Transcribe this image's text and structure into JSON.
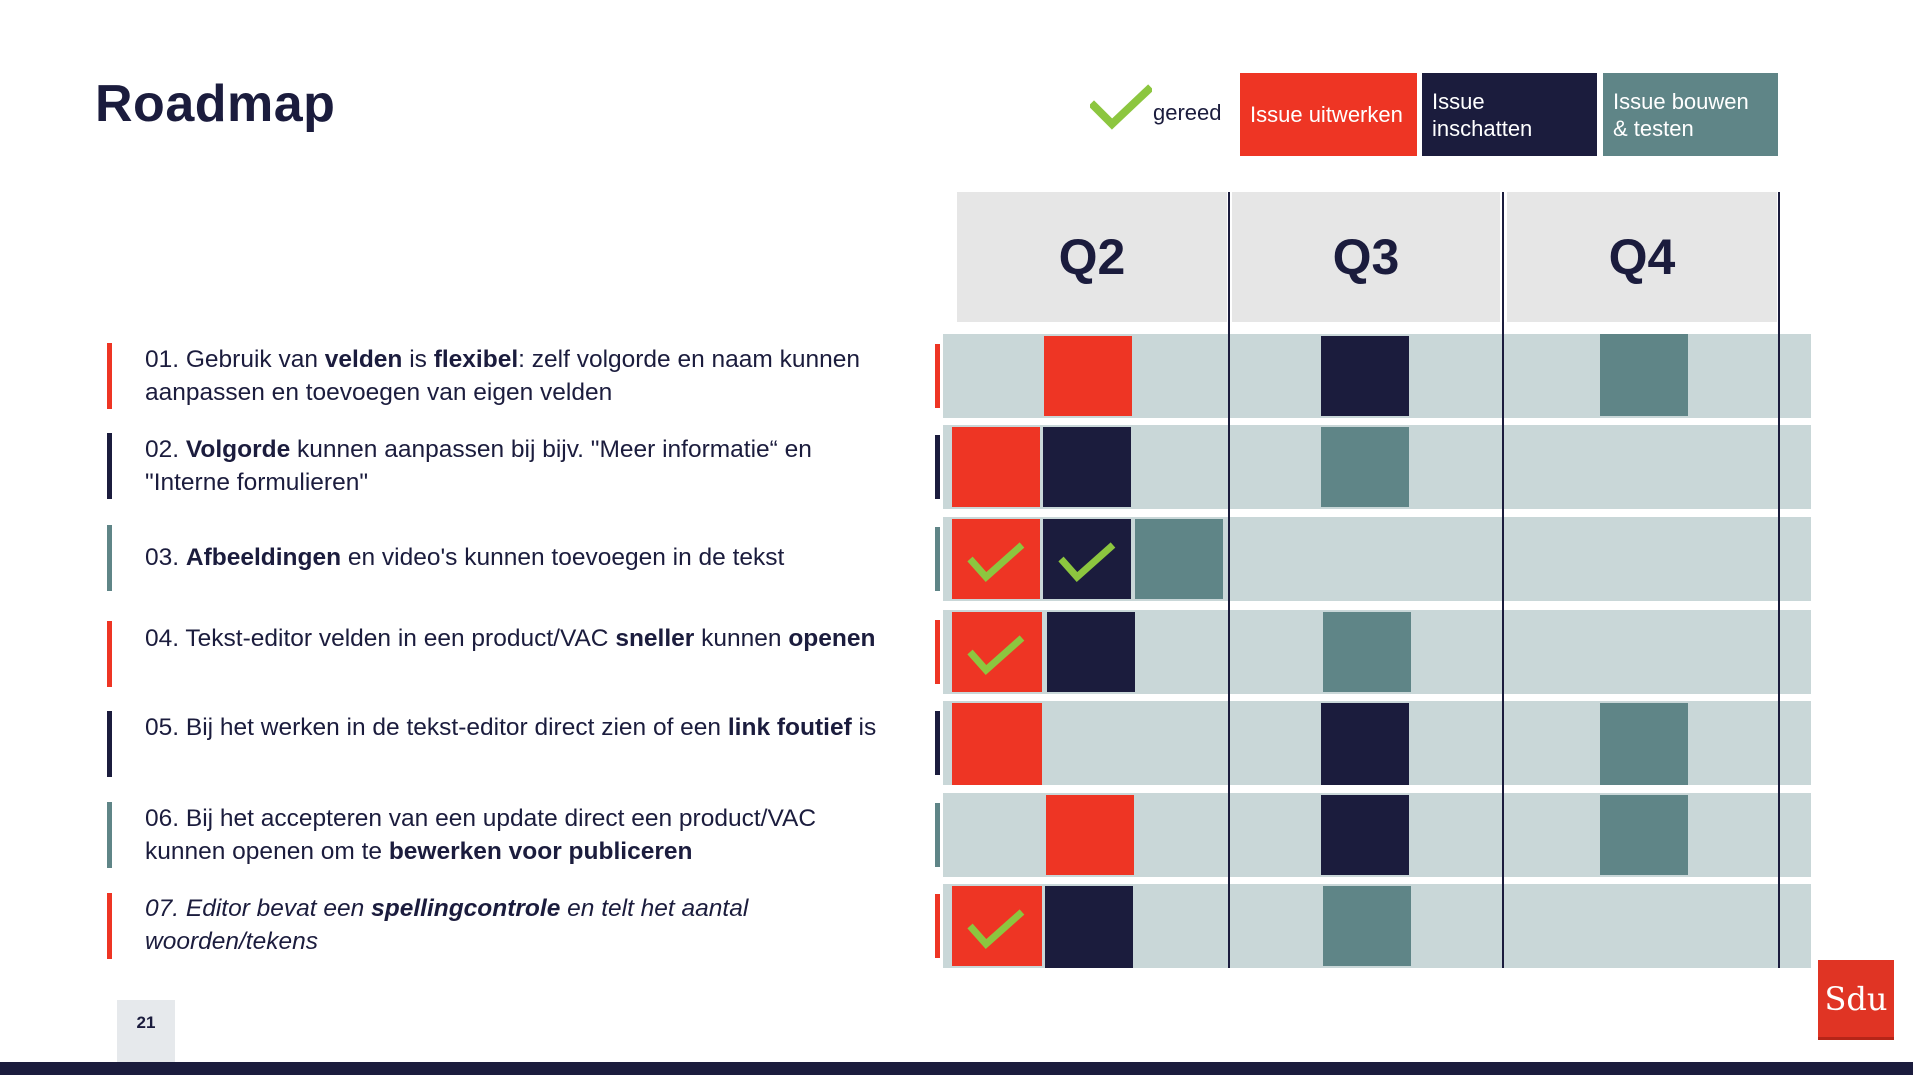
{
  "title": "Roadmap",
  "page_number": "21",
  "logo_text": "Sdu",
  "legend": {
    "done_icon": "check-icon",
    "done_label": "gereed",
    "red_label": "Issue uitwerken",
    "navy_label": "Issue inschatten",
    "teal_label": "Issue bouwen & testen"
  },
  "quarters": [
    "Q2",
    "Q3",
    "Q4"
  ],
  "colors": {
    "red": "#ee3524",
    "navy": "#1b1c3d",
    "teal": "#5f8587",
    "check": "#8cc63f",
    "row_bg": "#c9d7d8"
  },
  "items": [
    {
      "parts": [
        [
          "01. Gebruik van ",
          false
        ],
        [
          "velden",
          true
        ],
        [
          " is ",
          false
        ],
        [
          "flexibel",
          true
        ],
        [
          ": zelf volgorde en naam kunnen aanpassen en toevoegen van eigen velden",
          false
        ]
      ],
      "italic": false,
      "accent": "red"
    },
    {
      "parts": [
        [
          "02. ",
          false
        ],
        [
          "Volgorde",
          true
        ],
        [
          " kunnen aanpassen bij bijv. \"Meer informatie“ en \"Interne formulieren\"",
          false
        ]
      ],
      "italic": false,
      "accent": "navy"
    },
    {
      "parts": [
        [
          "03. ",
          false
        ],
        [
          "Afbeeldingen",
          true
        ],
        [
          " en video's kunnen toevoegen in de tekst",
          false
        ]
      ],
      "italic": false,
      "accent": "teal"
    },
    {
      "parts": [
        [
          "04. Tekst-editor velden in een product/VAC ",
          false
        ],
        [
          "sneller",
          true
        ],
        [
          " kunnen ",
          false
        ],
        [
          "openen",
          true
        ]
      ],
      "italic": false,
      "accent": "red"
    },
    {
      "parts": [
        [
          "05. Bij het werken in de tekst-editor direct zien of een ",
          false
        ],
        [
          "link foutief",
          true
        ],
        [
          " is",
          false
        ]
      ],
      "italic": false,
      "accent": "navy"
    },
    {
      "parts": [
        [
          "06. Bij het accepteren van een update direct een product/VAC kunnen openen om te ",
          false
        ],
        [
          "bewerken voor publiceren",
          true
        ]
      ],
      "italic": false,
      "accent": "teal"
    },
    {
      "parts": [
        [
          "07. Editor bevat een ",
          false
        ],
        [
          "spellingcontrole",
          true
        ],
        [
          " en telt het aantal woorden/tekens",
          false
        ]
      ],
      "italic": true,
      "accent": "red"
    }
  ]
}
